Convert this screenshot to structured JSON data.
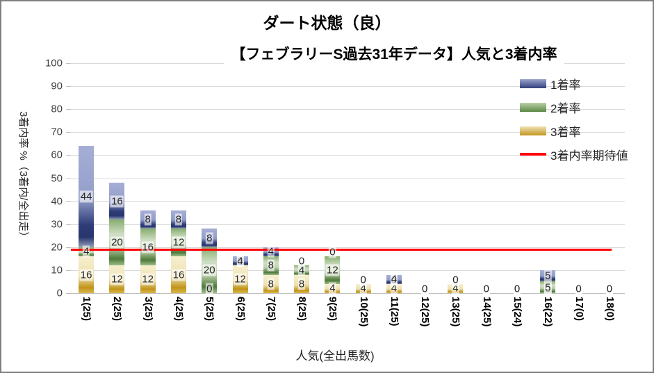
{
  "title_line1": "ダート状態（良）",
  "title_line2": "【フェブラリーS過去31年データ】人気と3着内率",
  "chart_data": {
    "type": "bar",
    "stacked": true,
    "title": "ダート状態（良）",
    "subtitle": "【フェブラリーS過去31年データ】人気と3着内率",
    "xlabel": "人気(全出馬数)",
    "ylabel": "3着内率 %（3着内/全出走）",
    "ylim": [
      0,
      100
    ],
    "ytick_step": 10,
    "grid": true,
    "legend_position": "top-right",
    "categories": [
      "1(25)",
      "2(25)",
      "3(25)",
      "4(25)",
      "5(25)",
      "6(25)",
      "7(25)",
      "8(25)",
      "9(25)",
      "10(25)",
      "11(25)",
      "12(25)",
      "13(25)",
      "14(25)",
      "15(24)",
      "16(22)",
      "17(0)",
      "18(0)"
    ],
    "series": [
      {
        "key": "rate-1st",
        "name": "1着率",
        "color_light": "#9aa3cc",
        "color_dark": "#31407e",
        "values": [
          44,
          16,
          8,
          8,
          8,
          4,
          4,
          0,
          0,
          0,
          4,
          0,
          0,
          0,
          0,
          5,
          0,
          0
        ]
      },
      {
        "key": "rate-2nd",
        "name": "2着率",
        "color_light": "#b9d0a6",
        "color_dark": "#5c8847",
        "values": [
          4,
          20,
          16,
          12,
          20,
          0,
          8,
          4,
          12,
          0,
          0,
          0,
          0,
          0,
          0,
          5,
          0,
          0
        ]
      },
      {
        "key": "rate-3rd",
        "name": "3着率",
        "color_light": "#f0e2b8",
        "color_dark": "#c3971f",
        "values": [
          16,
          12,
          12,
          16,
          0,
          12,
          8,
          8,
          4,
          4,
          4,
          0,
          4,
          0,
          0,
          0,
          0,
          0
        ]
      }
    ],
    "line": {
      "name": "3着内率期待値",
      "value": 19,
      "color": "#ff0000"
    }
  }
}
